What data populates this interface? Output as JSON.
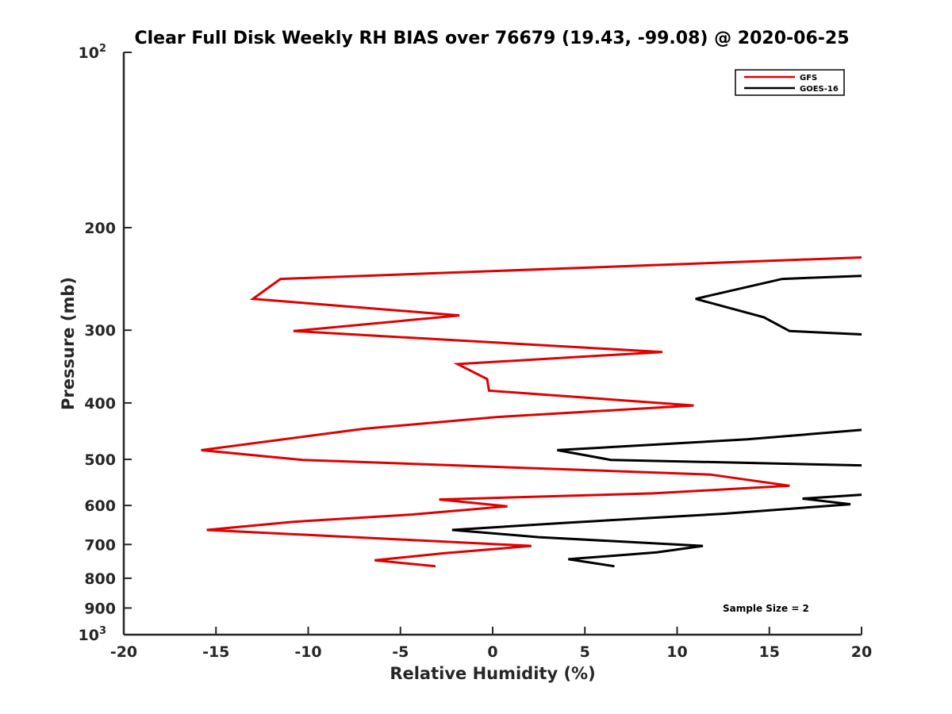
{
  "chart_data": {
    "type": "line",
    "title": "Clear Full Disk Weekly RH BIAS over 76679 (19.43, -99.08) @ 2020-06-25",
    "xlabel": "Relative Humidity (%)",
    "ylabel": "Pressure (mb)",
    "xlim": [
      -20,
      20
    ],
    "ylim": [
      1000,
      100
    ],
    "yscale": "log",
    "y_reversed": true,
    "grid": false,
    "legend_position": "top-right",
    "x_ticks": [
      "-20",
      "-15",
      "-10",
      "-5",
      "0",
      "5",
      "10",
      "15",
      "20"
    ],
    "y_ticks": [
      {
        "value": 100,
        "base": "10",
        "exp": "2"
      },
      {
        "value": 200,
        "label": "200"
      },
      {
        "value": 300,
        "label": "300"
      },
      {
        "value": 400,
        "label": "400"
      },
      {
        "value": 500,
        "label": "500"
      },
      {
        "value": 600,
        "label": "600"
      },
      {
        "value": 700,
        "label": "700"
      },
      {
        "value": 800,
        "label": "800"
      },
      {
        "value": 900,
        "label": "900"
      },
      {
        "value": 1000,
        "base": "10",
        "exp": "3"
      }
    ],
    "annotation": "Sample Size = 2",
    "series": [
      {
        "name": "GFS",
        "color": "#e00000",
        "points": [
          [
            20,
            225
          ],
          [
            -11.5,
            245
          ],
          [
            -13,
            265
          ],
          [
            -1.8,
            283
          ],
          [
            -10.8,
            301
          ],
          [
            9.2,
            327
          ],
          [
            -1.9,
            343
          ],
          [
            -0.3,
            364
          ],
          [
            -0.2,
            381
          ],
          [
            10.9,
            404
          ],
          [
            0.2,
            423
          ],
          [
            -7,
            443
          ],
          [
            -15.8,
            482
          ],
          [
            -10.3,
            501
          ],
          [
            11.8,
            531
          ],
          [
            16.1,
            555
          ],
          [
            8.7,
            572
          ],
          [
            -2.9,
            586
          ],
          [
            0.8,
            602
          ],
          [
            -4.4,
            622
          ],
          [
            -10.8,
            640
          ],
          [
            -15.5,
            661
          ],
          [
            2.1,
            704
          ],
          [
            -2.7,
            725
          ],
          [
            -6.4,
            745
          ],
          [
            -3.1,
            763
          ]
        ]
      },
      {
        "name": "GOES-16",
        "color": "#000000",
        "points": [
          [
            20,
            242
          ],
          [
            15.7,
            245
          ],
          [
            11,
            265
          ],
          [
            14.7,
            285
          ],
          [
            16.1,
            301
          ],
          [
            20,
            305
          ],
          [
            null,
            null
          ],
          [
            20,
            445
          ],
          [
            13.8,
            462
          ],
          [
            3.5,
            482
          ],
          [
            6.4,
            501
          ],
          [
            20,
            512
          ],
          [
            null,
            null
          ],
          [
            20,
            575
          ],
          [
            16.8,
            584
          ],
          [
            19.4,
            597
          ],
          [
            12.5,
            620
          ],
          [
            3.8,
            643
          ],
          [
            -2.2,
            661
          ],
          [
            2.5,
            680
          ],
          [
            11.4,
            704
          ],
          [
            8.9,
            722
          ],
          [
            4.1,
            742
          ],
          [
            6.6,
            763
          ]
        ]
      }
    ]
  }
}
